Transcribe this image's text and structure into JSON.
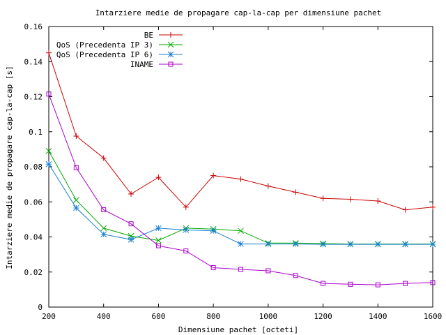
{
  "chart_data": {
    "type": "line",
    "title": "Intarziere medie de propagare cap-la-cap per dimensiune pachet",
    "xlabel": "Dimensiune pachet [octeti]",
    "ylabel": "Intarziere medie de propagare cap-la-cap [s]",
    "xlim": [
      200,
      1600
    ],
    "ylim": [
      0,
      0.16
    ],
    "x_ticks": [
      "200",
      "400",
      "600",
      "800",
      "1000",
      "1200",
      "1400",
      "1600"
    ],
    "y_ticks": [
      "0",
      "0.02",
      "0.04",
      "0.06",
      "0.08",
      "0.1",
      "0.12",
      "0.14",
      "0.16"
    ],
    "grid": false,
    "legend": "top-left",
    "series": [
      {
        "name": "BE",
        "color": "#cc0000",
        "marker": "plus",
        "x": [
          200,
          300,
          400,
          500,
          600,
          700,
          800,
          900,
          1000,
          1100,
          1200,
          1300,
          1400,
          1500,
          1600
        ],
        "y": [
          0.145,
          0.0975,
          0.085,
          0.0645,
          0.074,
          0.057,
          0.075,
          0.073,
          0.069,
          0.0655,
          0.062,
          0.0615,
          0.0605,
          0.0555,
          0.057
        ]
      },
      {
        "name": "QoS (Precedenta IP 3)",
        "color": "#00aa00",
        "marker": "cross",
        "x": [
          200,
          300,
          400,
          500,
          600,
          700,
          800,
          900,
          1000,
          1100,
          1200,
          1300,
          1400,
          1500,
          1600
        ],
        "y": [
          0.089,
          0.061,
          0.045,
          0.0405,
          0.038,
          0.045,
          0.0445,
          0.0435,
          0.0365,
          0.0365,
          0.0362,
          0.036,
          0.036,
          0.036,
          0.036
        ]
      },
      {
        "name": "QoS (Precedenta IP 6)",
        "color": "#1a7fd4",
        "marker": "star",
        "x": [
          200,
          300,
          400,
          500,
          600,
          700,
          800,
          900,
          1000,
          1100,
          1200,
          1300,
          1400,
          1500,
          1600
        ],
        "y": [
          0.0815,
          0.0565,
          0.0415,
          0.0385,
          0.045,
          0.044,
          0.0435,
          0.036,
          0.036,
          0.036,
          0.0358,
          0.0358,
          0.0358,
          0.0358,
          0.0358
        ]
      },
      {
        "name": "INAME",
        "color": "#aa00cc",
        "marker": "square",
        "x": [
          200,
          300,
          400,
          500,
          600,
          700,
          800,
          900,
          1000,
          1100,
          1200,
          1300,
          1400,
          1500,
          1600
        ],
        "y": [
          0.1215,
          0.0795,
          0.0555,
          0.0475,
          0.035,
          0.032,
          0.0225,
          0.0215,
          0.0207,
          0.018,
          0.0135,
          0.013,
          0.0127,
          0.0135,
          0.014
        ]
      }
    ]
  }
}
